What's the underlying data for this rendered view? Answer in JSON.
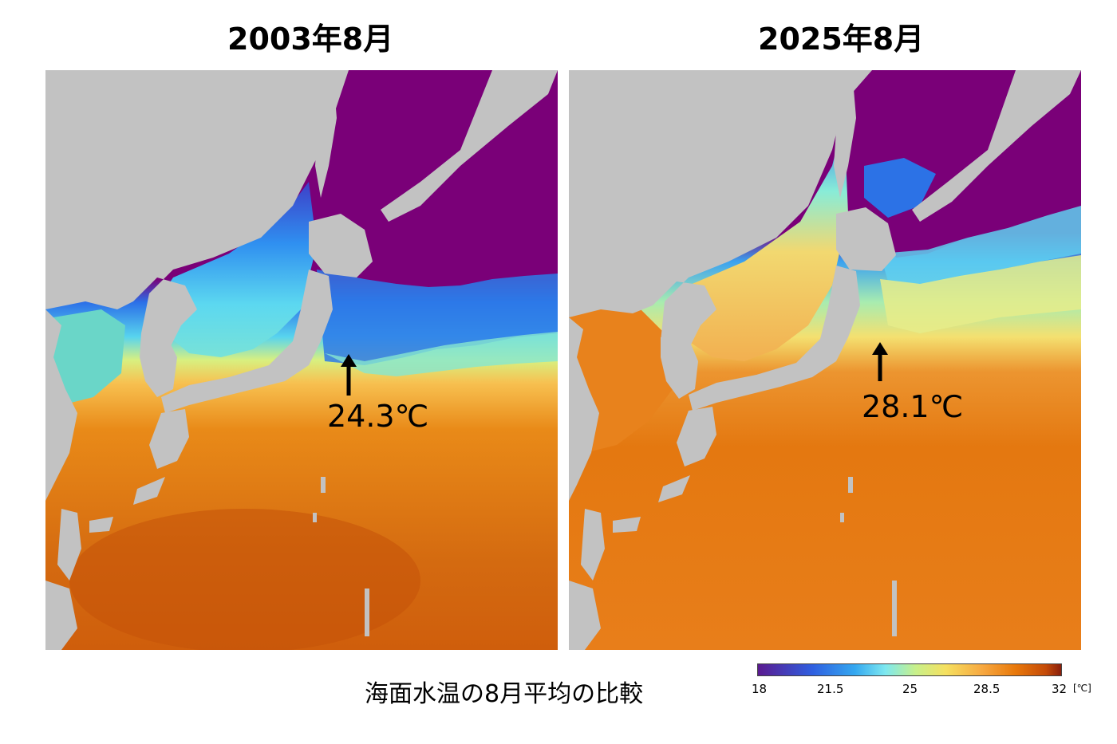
{
  "maps": [
    {
      "title": "2003年8月",
      "annotation": "24.3℃"
    },
    {
      "title": "2025年8月",
      "annotation": "28.1℃"
    }
  ],
  "caption": "海面水温の8月平均の比較",
  "colorbar": {
    "ticks": [
      "18",
      "21.5",
      "25",
      "28.5",
      "32"
    ],
    "unit": "[℃]",
    "range": [
      18,
      32
    ],
    "colors": [
      "#5a1a90",
      "#2f5fe0",
      "#34a8f0",
      "#7de8f0",
      "#c8f08a",
      "#f5e060",
      "#f7a840",
      "#e8780a",
      "#c44a08",
      "#8a1f0c"
    ]
  },
  "land_color": "#c2c2c2",
  "cold_color": "#7a0078"
}
